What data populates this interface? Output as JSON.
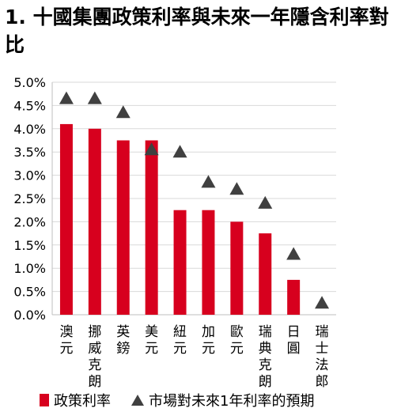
{
  "title": "1. 十國集團政策利率與未來一年隱含利率對比",
  "chart_data": {
    "type": "bar",
    "categories": [
      "澳元",
      "挪威克朗",
      "英鎊",
      "美元",
      "紐元",
      "加元",
      "歐元",
      "瑞典克朗",
      "日圓",
      "瑞士法郎"
    ],
    "series": [
      {
        "name": "政策利率",
        "type": "bar",
        "color": "#d7001e",
        "values": [
          4.1,
          4.0,
          3.75,
          3.75,
          2.25,
          2.25,
          2.0,
          1.75,
          0.75,
          0.0
        ]
      },
      {
        "name": "市場對未來1年利率的預期",
        "type": "triangle-marker",
        "color": "#404040",
        "values": [
          4.65,
          4.65,
          4.35,
          3.55,
          3.5,
          2.85,
          2.7,
          2.4,
          1.3,
          0.25
        ]
      }
    ],
    "y_ticks": [
      "0.0%",
      "0.5%",
      "1.0%",
      "1.5%",
      "2.0%",
      "2.5%",
      "3.0%",
      "3.5%",
      "4.0%",
      "4.5%",
      "5.0%"
    ],
    "ylim": [
      0,
      5
    ],
    "grid": "horizontal",
    "legend": "bottom"
  }
}
